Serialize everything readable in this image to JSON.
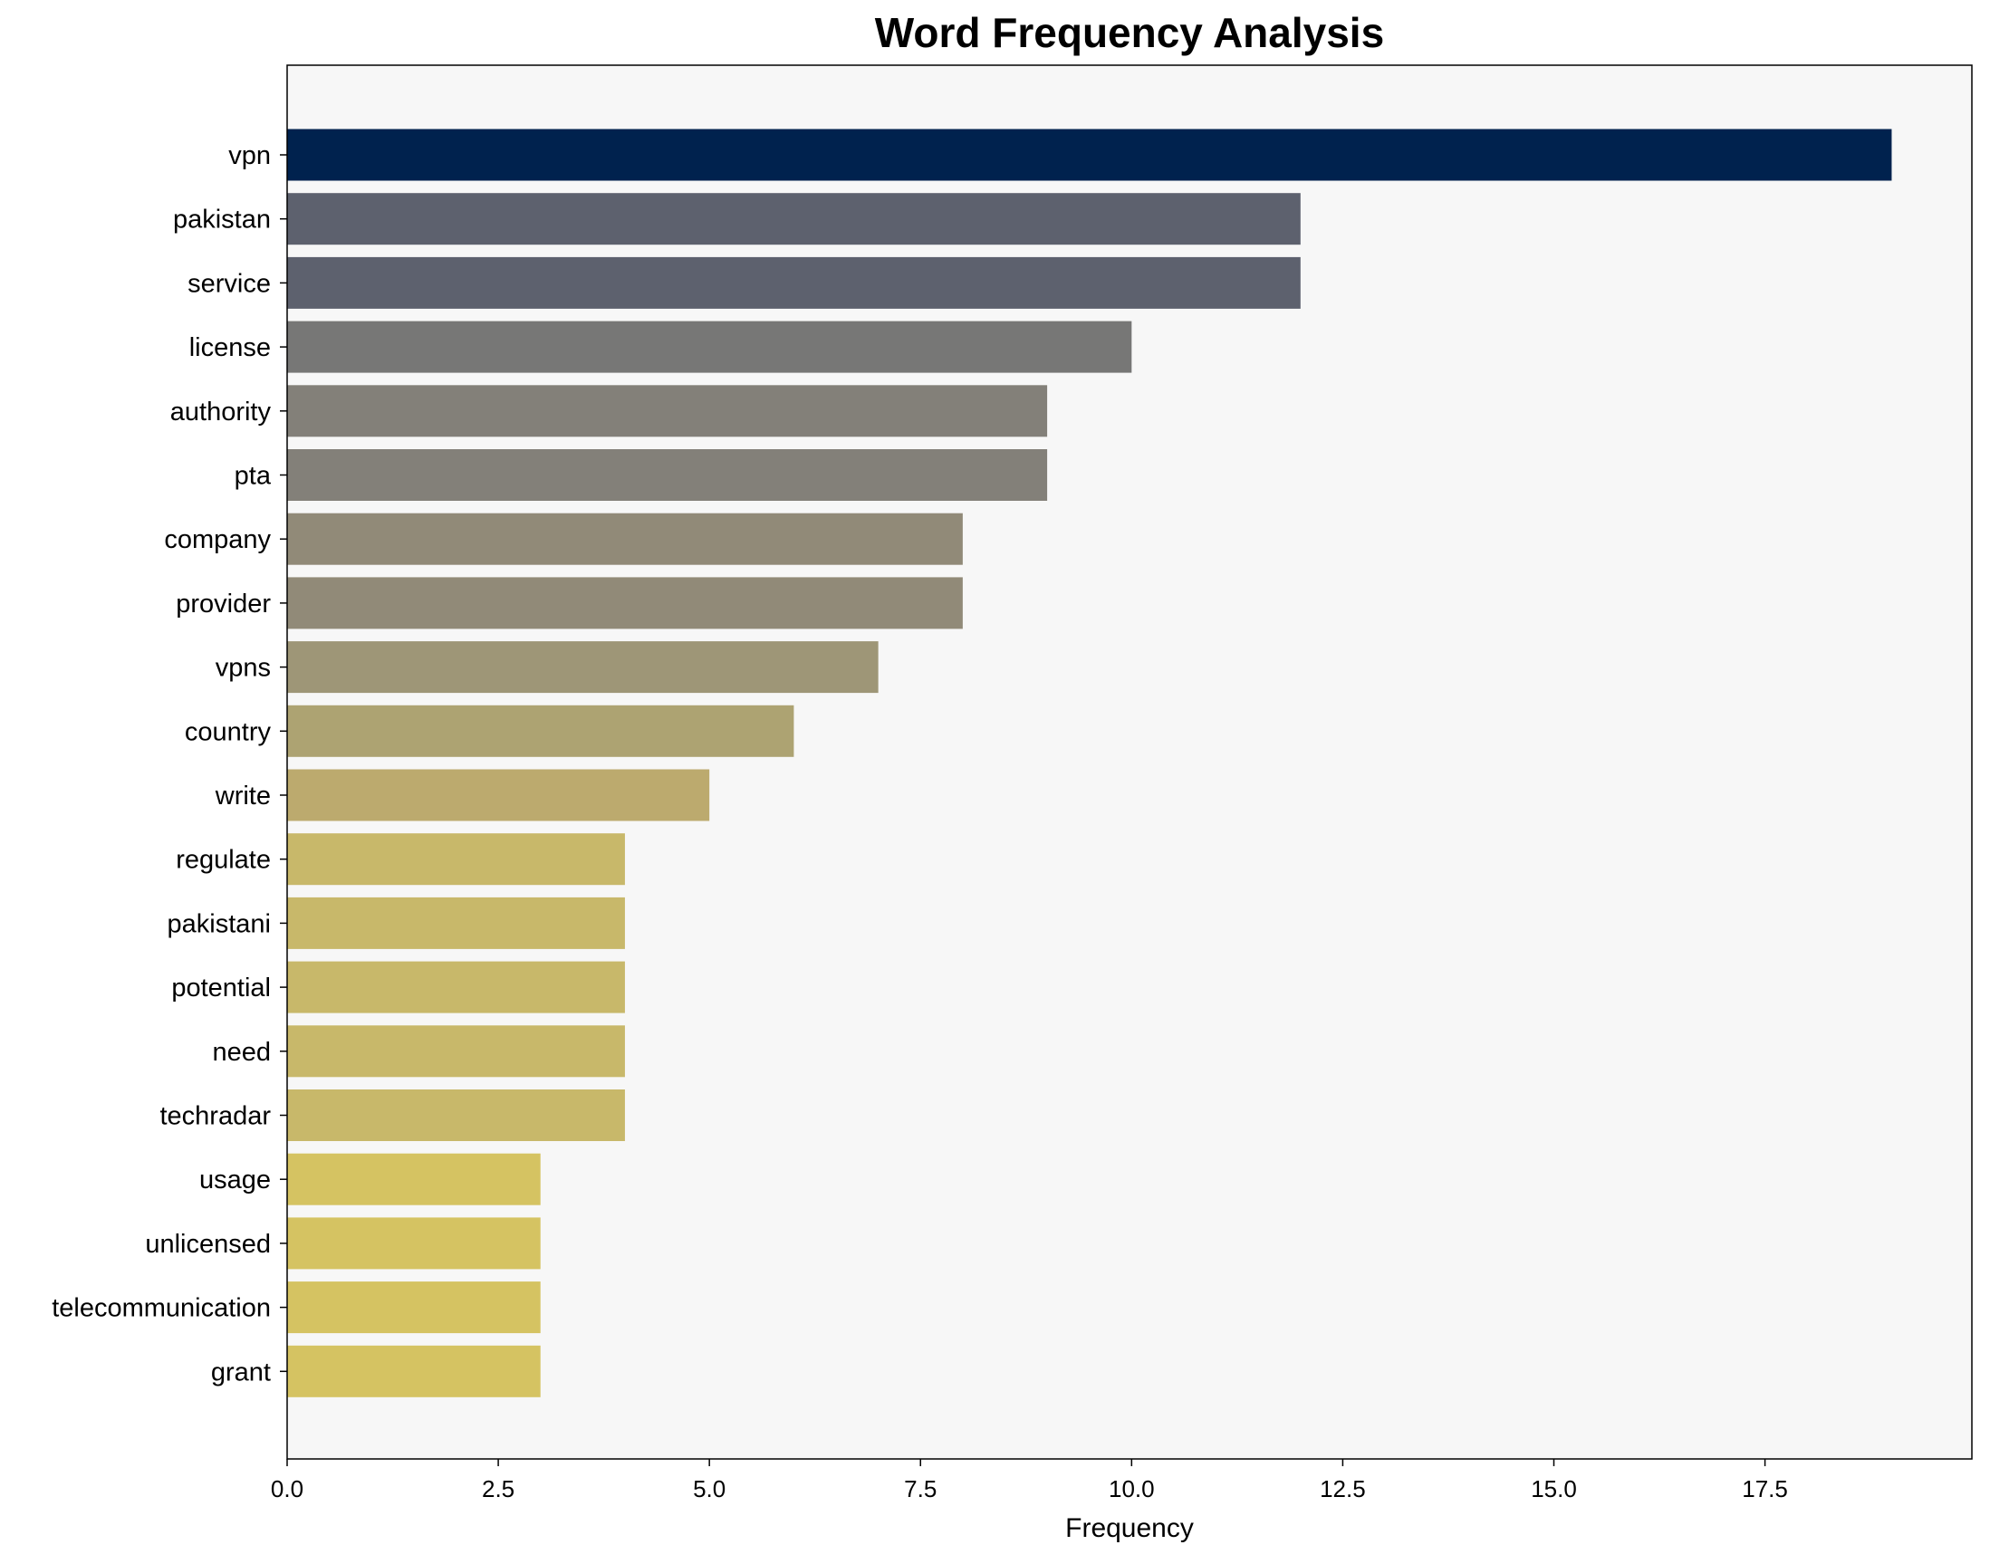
{
  "chart_data": {
    "type": "bar",
    "orientation": "horizontal",
    "title": "Word Frequency Analysis",
    "xlabel": "Frequency",
    "ylabel": "",
    "xlim": [
      0,
      19.95
    ],
    "xticks": [
      0.0,
      2.5,
      5.0,
      7.5,
      10.0,
      12.5,
      15.0,
      17.5
    ],
    "xtick_labels": [
      "0.0",
      "2.5",
      "5.0",
      "7.5",
      "10.0",
      "12.5",
      "15.0",
      "17.5"
    ],
    "grid": false,
    "background": "#f7f7f7",
    "categories": [
      "vpn",
      "pakistan",
      "service",
      "license",
      "authority",
      "pta",
      "company",
      "provider",
      "vpns",
      "country",
      "write",
      "regulate",
      "pakistani",
      "potential",
      "need",
      "techradar",
      "usage",
      "unlicensed",
      "telecommunication",
      "grant"
    ],
    "values": [
      19,
      12,
      12,
      10,
      9,
      9,
      8,
      8,
      7,
      6,
      5,
      4,
      4,
      4,
      4,
      4,
      3,
      3,
      3,
      3
    ],
    "colors": [
      "#00224e",
      "#5d616e",
      "#5d616e",
      "#777776",
      "#838079",
      "#838079",
      "#918a78",
      "#918a78",
      "#9e9677",
      "#ada372",
      "#bcaa6e",
      "#c8b86a",
      "#c8b86a",
      "#c8b86a",
      "#c8b86a",
      "#c8b86a",
      "#d5c362",
      "#d5c362",
      "#d5c362",
      "#d5c362"
    ]
  }
}
